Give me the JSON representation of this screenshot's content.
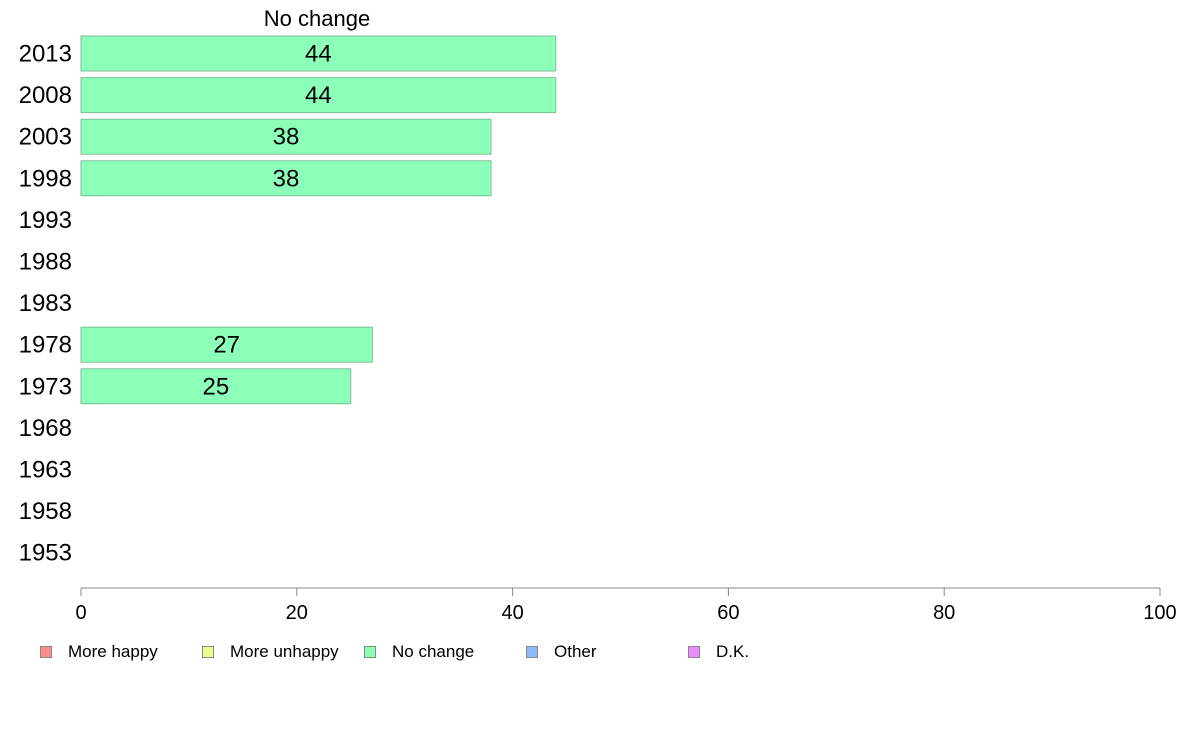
{
  "chart_data": {
    "type": "bar",
    "orientation": "horizontal",
    "panel_title": "No change",
    "categories": [
      "2013",
      "2008",
      "2003",
      "1998",
      "1993",
      "1988",
      "1983",
      "1978",
      "1973",
      "1968",
      "1963",
      "1958",
      "1953"
    ],
    "series": [
      {
        "name": "No change",
        "color": "#8cffb9",
        "values": [
          44,
          44,
          38,
          38,
          null,
          null,
          null,
          27,
          25,
          null,
          null,
          null,
          null
        ],
        "labels": [
          "44",
          "44",
          "38",
          "38",
          "",
          "",
          "",
          "27",
          "25",
          "",
          "",
          "",
          ""
        ]
      }
    ],
    "xlim": [
      0,
      100
    ],
    "xticks": [
      "0",
      "20",
      "40",
      "60",
      "80",
      "100"
    ],
    "grid": false,
    "legend_placement": "bottom"
  },
  "legend": [
    {
      "label": "More happy",
      "color": "#ff8c8c"
    },
    {
      "label": "More unhappy",
      "color": "#ecff8c"
    },
    {
      "label": "No change",
      "color": "#8cffb9"
    },
    {
      "label": "Other",
      "color": "#8cb9ff"
    },
    {
      "label": "D.K.",
      "color": "#ec8cff"
    }
  ]
}
